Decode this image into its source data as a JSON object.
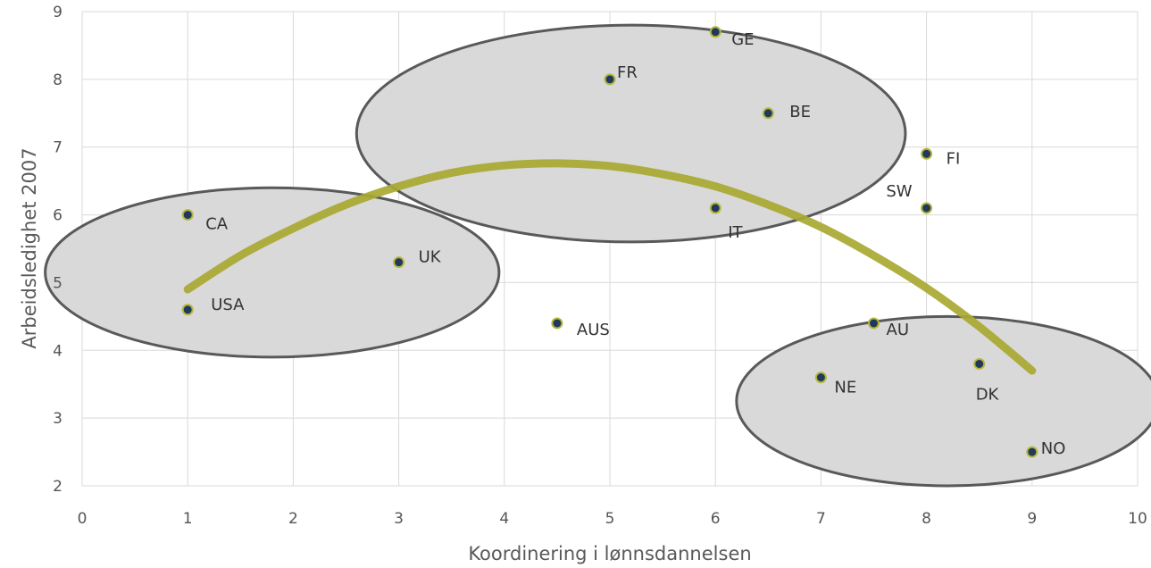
{
  "chart_data": {
    "type": "scatter",
    "xlabel": "Koordinering i lønnsdannelsen",
    "ylabel": "Arbeidsledighet 2007",
    "xlim": [
      0,
      10
    ],
    "ylim": [
      2,
      9
    ],
    "x_ticks": [
      0,
      1,
      2,
      3,
      4,
      5,
      6,
      7,
      8,
      9,
      10
    ],
    "y_ticks": [
      2,
      3,
      4,
      5,
      6,
      7,
      8,
      9
    ],
    "grid": true,
    "points": [
      {
        "label": "CA",
        "x": 1,
        "y": 6.0
      },
      {
        "label": "USA",
        "x": 1,
        "y": 4.6
      },
      {
        "label": "UK",
        "x": 3,
        "y": 5.3
      },
      {
        "label": "AUS",
        "x": 4.5,
        "y": 4.4
      },
      {
        "label": "FR",
        "x": 5,
        "y": 8.0
      },
      {
        "label": "GE",
        "x": 6,
        "y": 8.7
      },
      {
        "label": "IT",
        "x": 6,
        "y": 6.1
      },
      {
        "label": "BE",
        "x": 6.5,
        "y": 7.5
      },
      {
        "label": "FI",
        "x": 8,
        "y": 6.9
      },
      {
        "label": "SW",
        "x": 8,
        "y": 6.1
      },
      {
        "label": "AU",
        "x": 7.5,
        "y": 4.4
      },
      {
        "label": "NE",
        "x": 7,
        "y": 3.6
      },
      {
        "label": "DK",
        "x": 8.5,
        "y": 3.8
      },
      {
        "label": "NO",
        "x": 9,
        "y": 2.5
      }
    ],
    "trend_curve": {
      "x": [
        1,
        1.5,
        2,
        2.5,
        3,
        3.5,
        4,
        4.5,
        5,
        5.5,
        6,
        6.5,
        7,
        7.5,
        8,
        8.5,
        9
      ],
      "y": [
        4.9,
        5.4,
        5.8,
        6.15,
        6.42,
        6.62,
        6.73,
        6.76,
        6.72,
        6.6,
        6.42,
        6.15,
        5.82,
        5.4,
        4.92,
        4.35,
        3.7
      ],
      "color": "#a8a832"
    },
    "clusters": [
      {
        "center_x": 1.8,
        "center_y": 5.15,
        "radius_x": 2.15,
        "radius_y": 1.25
      },
      {
        "center_x": 5.2,
        "center_y": 7.2,
        "radius_x": 2.6,
        "radius_y": 1.6
      },
      {
        "center_x": 8.2,
        "center_y": 3.25,
        "radius_x": 2.0,
        "radius_y": 1.25
      }
    ],
    "colors": {
      "marker_fill": "#1f3a5a",
      "marker_ring": "#b5b53c",
      "cluster_fill": "#d9d9d9",
      "cluster_stroke": "#595959",
      "grid": "#d9d9d9"
    }
  }
}
